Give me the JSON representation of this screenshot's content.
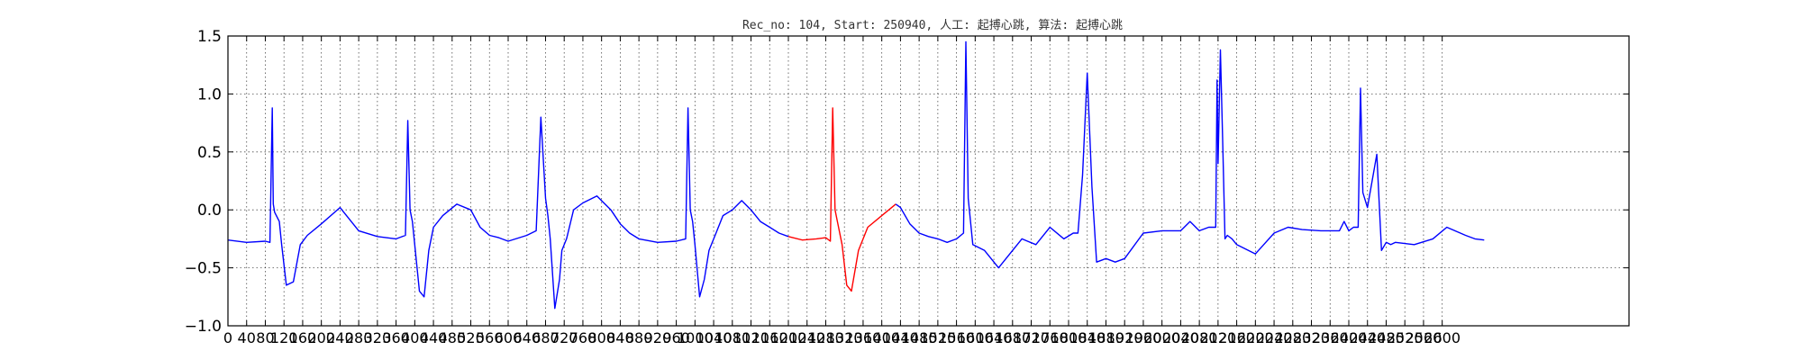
{
  "chart_data": {
    "type": "line",
    "title": "Rec_no: 104, Start: 250940, 人工: 起搏心跳, 算法: 起搏心跳",
    "xlabel": "",
    "ylabel": "",
    "ylim": [
      -1.0,
      1.5
    ],
    "xlim": [
      0,
      3000
    ],
    "grid": true,
    "yticks": [
      "1.5",
      "1.0",
      "0.5",
      "0.0",
      "−0.5",
      "−1.0"
    ],
    "xticks": [
      0,
      40,
      80,
      120,
      160,
      200,
      240,
      280,
      320,
      360,
      400,
      440,
      480,
      520,
      560,
      600,
      640,
      680,
      720,
      760,
      800,
      840,
      880,
      920,
      960,
      1000,
      1040,
      1080,
      1120,
      1160,
      1200,
      1240,
      1280,
      1320,
      1360,
      1400,
      1440,
      1480,
      1520,
      1560,
      1600,
      1640,
      1680,
      1720,
      1760,
      1800,
      1840,
      1880,
      1920,
      1960,
      2000,
      2040,
      2080,
      2120,
      2160,
      2200,
      2240,
      2280,
      2320,
      2360,
      2400,
      2440,
      2480,
      2520,
      2560,
      2600
    ],
    "series": [
      {
        "color": "#0000ff",
        "x": [
          0,
          40,
          80,
          90,
          95,
          97,
          100,
          110,
          115,
          125,
          140,
          155,
          170,
          200,
          240,
          280,
          320,
          360,
          380,
          385,
          390,
          395,
          400,
          410,
          420,
          430,
          440,
          460,
          490,
          520,
          540,
          560,
          580,
          600,
          640,
          660,
          670,
          680,
          685,
          690,
          700,
          710,
          715,
          725,
          740,
          760,
          790,
          820,
          840,
          860,
          880,
          920,
          960,
          980,
          985,
          990,
          995,
          1000,
          1010,
          1020,
          1030,
          1045,
          1060,
          1080,
          1100,
          1120,
          1140,
          1160,
          1180,
          1200
        ],
        "y": [
          -0.26,
          -0.28,
          -0.27,
          -0.28,
          0.88,
          0.05,
          -0.02,
          -0.1,
          -0.3,
          -0.65,
          -0.62,
          -0.3,
          -0.22,
          -0.12,
          0.02,
          -0.18,
          -0.23,
          -0.25,
          -0.22,
          0.77,
          0.0,
          -0.1,
          -0.3,
          -0.7,
          -0.75,
          -0.35,
          -0.15,
          -0.05,
          0.05,
          0.0,
          -0.15,
          -0.22,
          -0.24,
          -0.27,
          -0.22,
          -0.18,
          0.8,
          0.1,
          -0.05,
          -0.25,
          -0.85,
          -0.6,
          -0.35,
          -0.25,
          0.0,
          0.06,
          0.12,
          0.0,
          -0.12,
          -0.2,
          -0.25,
          -0.28,
          -0.27,
          -0.25,
          0.88,
          0.0,
          -0.1,
          -0.3,
          -0.75,
          -0.6,
          -0.35,
          -0.2,
          -0.05,
          0.0,
          0.08,
          0.0,
          -0.1,
          -0.15,
          -0.2,
          -0.23
        ]
      },
      {
        "color": "#ff0000",
        "x": [
          1200,
          1230,
          1260,
          1280,
          1290,
          1295,
          1300,
          1305,
          1315,
          1325,
          1335,
          1350,
          1370,
          1400,
          1430
        ],
        "y": [
          -0.23,
          -0.26,
          -0.25,
          -0.24,
          -0.27,
          0.88,
          0.0,
          -0.1,
          -0.3,
          -0.65,
          -0.7,
          -0.35,
          -0.15,
          -0.05,
          0.05
        ]
      },
      {
        "color": "#0000ff",
        "x": [
          1430,
          1440,
          1460,
          1480,
          1500,
          1520,
          1540,
          1560,
          1575,
          1580,
          1585,
          1595,
          1620,
          1650,
          1680,
          1700,
          1730,
          1760,
          1790,
          1810,
          1820,
          1830,
          1840,
          1850,
          1860,
          1880,
          1900,
          1920,
          1960,
          2000,
          2040,
          2060,
          2080,
          2100,
          2115,
          2118,
          2120,
          2125,
          2130,
          2135,
          2140,
          2150,
          2160,
          2200,
          2240,
          2270,
          2300,
          2340,
          2380,
          2390,
          2400,
          2410,
          2420,
          2425,
          2430,
          2440,
          2450,
          2460,
          2470,
          2480,
          2490,
          2500,
          2540,
          2580,
          2610,
          2650,
          2670,
          2690
        ],
        "y": [
          0.05,
          0.02,
          -0.12,
          -0.2,
          -0.23,
          -0.25,
          -0.28,
          -0.25,
          -0.2,
          1.45,
          0.1,
          -0.3,
          -0.35,
          -0.5,
          -0.35,
          -0.25,
          -0.3,
          -0.15,
          -0.25,
          -0.2,
          -0.2,
          0.3,
          1.18,
          0.2,
          -0.45,
          -0.42,
          -0.45,
          -0.42,
          -0.2,
          -0.18,
          -0.18,
          -0.1,
          -0.18,
          -0.15,
          -0.15,
          1.12,
          0.4,
          1.38,
          0.6,
          -0.25,
          -0.22,
          -0.25,
          -0.3,
          -0.38,
          -0.2,
          -0.15,
          -0.17,
          -0.18,
          -0.18,
          -0.1,
          -0.18,
          -0.15,
          -0.15,
          1.05,
          0.15,
          0.02,
          0.25,
          0.48,
          -0.35,
          -0.28,
          -0.3,
          -0.28,
          -0.3,
          -0.25,
          -0.15,
          -0.22,
          -0.25,
          -0.26
        ]
      }
    ]
  }
}
